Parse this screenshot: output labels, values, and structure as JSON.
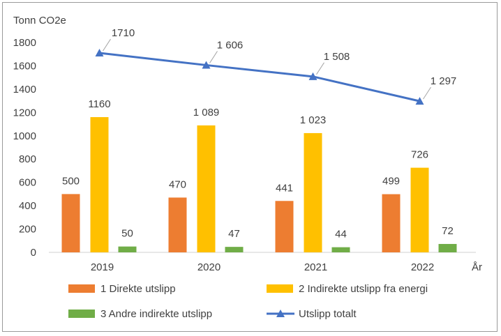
{
  "chart_data": {
    "type": "bar",
    "ylabel": "Tonn CO2e",
    "xlabel": "År",
    "categories": [
      "2019",
      "2020",
      "2021",
      "2022"
    ],
    "ylim": [
      0,
      1800
    ],
    "yticks": [
      "0",
      "200",
      "400",
      "600",
      "800",
      "1000",
      "1200",
      "1400",
      "1600",
      "1800"
    ],
    "grid": false,
    "legend_position": "bottom",
    "series": [
      {
        "name": "1 Direkte utslipp",
        "type": "bar",
        "color": "#ED7D31",
        "values": [
          500,
          470,
          441,
          499
        ],
        "labels": [
          "500",
          "470",
          "441",
          "499"
        ]
      },
      {
        "name": "2 Indirekte utslipp fra energi",
        "type": "bar",
        "color": "#FFC000",
        "values": [
          1160,
          1089,
          1023,
          726
        ],
        "labels": [
          "1160",
          "1 089",
          "1 023",
          "726"
        ]
      },
      {
        "name": "3 Andre indirekte utslipp",
        "type": "bar",
        "color": "#70AD47",
        "values": [
          50,
          47,
          44,
          72
        ],
        "labels": [
          "50",
          "47",
          "44",
          "72"
        ]
      },
      {
        "name": "Utslipp totalt",
        "type": "line",
        "color": "#4472C4",
        "values": [
          1710,
          1606,
          1508,
          1297
        ],
        "labels": [
          "1710",
          "1 606",
          "1 508",
          "1 297"
        ]
      }
    ]
  }
}
